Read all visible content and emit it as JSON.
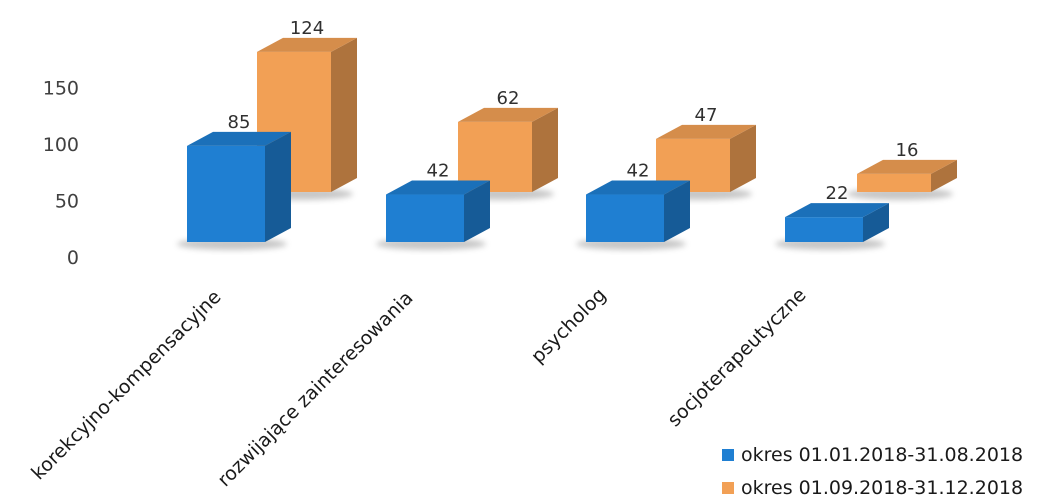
{
  "chart_data": {
    "type": "bar",
    "title": "",
    "xlabel": "",
    "ylabel": "",
    "categories": [
      "korekcyjno-kompensacyjne",
      "rozwijające zainteresowania",
      "psycholog",
      "socjoterapeutyczne"
    ],
    "series": [
      {
        "name": "okres 01.01.2018-31.08.2018",
        "values": [
          85,
          42,
          42,
          22
        ],
        "color": "#1f7fd2"
      },
      {
        "name": "okres 01.09.2018-31.12.2018",
        "values": [
          124,
          62,
          47,
          16
        ],
        "color": "#f2a055"
      }
    ],
    "yticks": [
      0,
      50,
      100,
      150
    ],
    "ylim": [
      0,
      150
    ],
    "grid": false,
    "legend_position": "bottom-right",
    "style": "3d-columns"
  }
}
